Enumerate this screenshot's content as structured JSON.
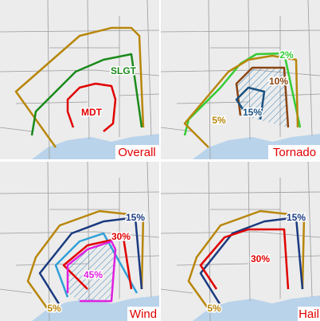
{
  "panels": [
    {
      "title": "Overall",
      "labels": [
        "SLGT",
        "MDT"
      ]
    },
    {
      "title": "Tornado",
      "labels": [
        "2%",
        "10%",
        "15%",
        "5%"
      ]
    },
    {
      "title": "Wind",
      "labels": [
        "15%",
        "30%",
        "45%",
        "5%"
      ]
    },
    {
      "title": "Hail",
      "labels": [
        "15%",
        "30%",
        "5%"
      ]
    }
  ]
}
